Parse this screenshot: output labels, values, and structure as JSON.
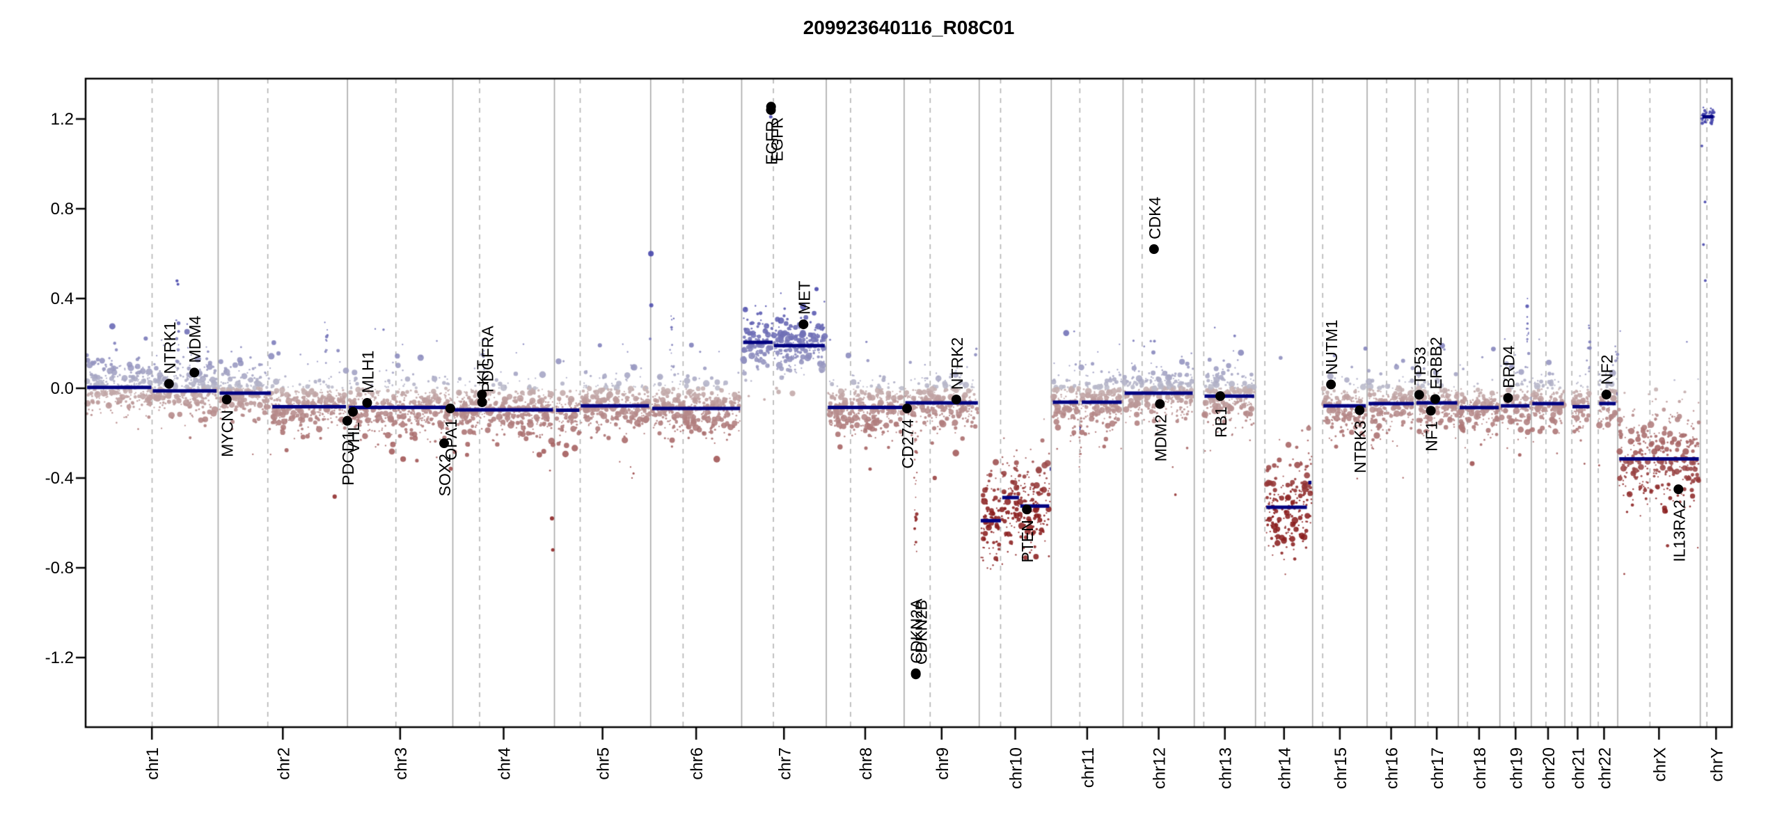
{
  "title": "209923640116_R08C01",
  "colors": {
    "background": "#ffffff",
    "segment": "#000080",
    "gene_marker": "#000000",
    "boundary_line": "#a9a9a9",
    "centromere_line": "#b3b3b3",
    "border": "#000000",
    "point_pos_near_zero": "#bcbcca",
    "point_pos_deep": "#4343ab",
    "point_neg_near_zero": "#c6b2b2",
    "point_neg_deep": "#8b2020"
  },
  "chart_data": {
    "type": "scatter",
    "title": "209923640116_R08C01",
    "xlabel": "",
    "ylabel": "",
    "ylim": [
      -1.51,
      1.38
    ],
    "y_ticks": [
      1.2,
      0.8,
      0.4,
      0.0,
      -0.4,
      -0.8,
      -1.2
    ],
    "y_tick_labels": [
      "1.2",
      "0.8",
      "0.4",
      "0.0",
      "-0.4",
      "-0.8",
      "-1.2"
    ],
    "grid": "chromosome boundaries solid, centromeres dashed",
    "legend": "none",
    "chromosomes": [
      {
        "name": "chr1",
        "length_mb": 249.25,
        "centromere_mb": 125.0,
        "probe_start_mb": 2.5,
        "probe_end_mb": 246.5,
        "segments": [
          [
            0,
            125,
            0.004
          ],
          [
            125,
            249.2,
            -0.012
          ]
        ]
      },
      {
        "name": "chr2",
        "length_mb": 243.2,
        "centromere_mb": 93.3,
        "probe_start_mb": 2.5,
        "probe_end_mb": 240.7,
        "segments": [
          [
            0,
            100.5,
            -0.022
          ],
          [
            100.5,
            243.2,
            -0.082
          ]
        ]
      },
      {
        "name": "chr3",
        "length_mb": 198.02,
        "centromere_mb": 91.0,
        "probe_start_mb": 2.5,
        "probe_end_mb": 195.5,
        "segments": [
          [
            0,
            198,
            -0.085
          ]
        ]
      },
      {
        "name": "chr4",
        "length_mb": 191.15,
        "centromere_mb": 50.4,
        "probe_start_mb": 2.5,
        "probe_end_mb": 188.6,
        "segments": [
          [
            0,
            191.1,
            -0.096
          ]
        ]
      },
      {
        "name": "chr5",
        "length_mb": 180.92,
        "centromere_mb": 48.4,
        "probe_start_mb": 2.5,
        "probe_end_mb": 178.4,
        "segments": [
          [
            0,
            48,
            -0.098
          ],
          [
            48,
            180.9,
            -0.078
          ]
        ]
      },
      {
        "name": "chr6",
        "length_mb": 171.12,
        "centromere_mb": 61.0,
        "probe_start_mb": 2.5,
        "probe_end_mb": 168.6,
        "segments": [
          [
            0,
            171.1,
            -0.09
          ]
        ]
      },
      {
        "name": "chr7",
        "length_mb": 159.14,
        "centromere_mb": 59.7,
        "probe_start_mb": 2.5,
        "probe_end_mb": 156.6,
        "segments": [
          [
            0,
            59.5,
            0.205
          ],
          [
            59.5,
            159.1,
            0.19
          ]
        ]
      },
      {
        "name": "chr8",
        "length_mb": 146.36,
        "centromere_mb": 45.6,
        "probe_start_mb": 2.5,
        "probe_end_mb": 143.9,
        "segments": [
          [
            0,
            146.3,
            -0.085
          ]
        ]
      },
      {
        "name": "chr9",
        "length_mb": 141.21,
        "centromere_mb": 49.0,
        "probe_start_mb": 2.0,
        "probe_end_mb": 139.0,
        "segments": [
          [
            0,
            141.2,
            -0.065
          ]
        ]
      },
      {
        "name": "chr10",
        "length_mb": 135.53,
        "centromere_mb": 40.2,
        "probe_start_mb": 2.5,
        "probe_end_mb": 133.0,
        "segments": [
          [
            0,
            42,
            -0.59
          ],
          [
            42,
            76,
            -0.487
          ],
          [
            76,
            133,
            -0.525
          ],
          [
            133,
            135.5,
            -0.36
          ]
        ]
      },
      {
        "name": "chr11",
        "length_mb": 135.01,
        "centromere_mb": 53.7,
        "probe_start_mb": 2.5,
        "probe_end_mb": 132.5,
        "segments": [
          [
            0,
            52,
            -0.062
          ],
          [
            52,
            56,
            -0.178
          ],
          [
            56,
            135,
            -0.062
          ]
        ]
      },
      {
        "name": "chr12",
        "length_mb": 133.85,
        "centromere_mb": 35.8,
        "probe_start_mb": 2.5,
        "probe_end_mb": 131.3,
        "segments": [
          [
            0,
            133.8,
            -0.022
          ]
        ]
      },
      {
        "name": "chr13",
        "length_mb": 115.17,
        "centromere_mb": 17.9,
        "probe_start_mb": 19.0,
        "probe_end_mb": 113.0,
        "segments": [
          [
            18,
            115.1,
            -0.035
          ]
        ]
      },
      {
        "name": "chr14",
        "length_mb": 107.35,
        "centromere_mb": 17.6,
        "probe_start_mb": 20.0,
        "probe_end_mb": 105.5,
        "segments": [
          [
            19,
            98,
            -0.53
          ],
          [
            98,
            107.3,
            -0.42
          ]
        ]
      },
      {
        "name": "chr15",
        "length_mb": 102.53,
        "centromere_mb": 19.0,
        "probe_start_mb": 20.0,
        "probe_end_mb": 100.5,
        "segments": [
          [
            19,
            102.5,
            -0.078
          ]
        ]
      },
      {
        "name": "chr16",
        "length_mb": 90.35,
        "centromere_mb": 36.6,
        "probe_start_mb": 2.5,
        "probe_end_mb": 88.0,
        "segments": [
          [
            0,
            90.3,
            -0.068
          ]
        ]
      },
      {
        "name": "chr17",
        "length_mb": 81.2,
        "centromere_mb": 24.0,
        "probe_start_mb": 2.0,
        "probe_end_mb": 79.5,
        "segments": [
          [
            0,
            81.2,
            -0.065
          ]
        ]
      },
      {
        "name": "chr18",
        "length_mb": 78.08,
        "centromere_mb": 17.2,
        "probe_start_mb": 2.0,
        "probe_end_mb": 76.3,
        "segments": [
          [
            0,
            78,
            -0.086
          ]
        ]
      },
      {
        "name": "chr19",
        "length_mb": 59.13,
        "centromere_mb": 26.5,
        "probe_start_mb": 1.5,
        "probe_end_mb": 58.0,
        "segments": [
          [
            0,
            57,
            -0.078
          ],
          [
            57,
            59.1,
            -0.045
          ]
        ]
      },
      {
        "name": "chr20",
        "length_mb": 63.03,
        "centromere_mb": 27.5,
        "probe_start_mb": 1.5,
        "probe_end_mb": 61.5,
        "segments": [
          [
            0,
            63,
            -0.068
          ]
        ]
      },
      {
        "name": "chr21",
        "length_mb": 48.13,
        "centromere_mb": 13.2,
        "probe_start_mb": 14.0,
        "probe_end_mb": 46.8,
        "segments": [
          [
            13,
            48.1,
            -0.082
          ]
        ]
      },
      {
        "name": "chr22",
        "length_mb": 51.3,
        "centromere_mb": 14.7,
        "probe_start_mb": 16.0,
        "probe_end_mb": 49.8,
        "segments": [
          [
            15,
            49,
            -0.068
          ],
          [
            49,
            51.3,
            -0.025
          ]
        ]
      },
      {
        "name": "chrX",
        "length_mb": 155.27,
        "centromere_mb": 60.6,
        "probe_start_mb": 2.5,
        "probe_end_mb": 152.8,
        "segments": [
          [
            0,
            155.2,
            -0.315
          ]
        ]
      },
      {
        "name": "chrY",
        "length_mb": 59.37,
        "centromere_mb": 12.5,
        "probe_start_mb": 2.5,
        "probe_end_mb": 26.0,
        "segments": [
          [
            2.5,
            26,
            1.21
          ]
        ],
        "density": 2.6,
        "sd": 0.022,
        "max_r": 1.9
      }
    ],
    "genes": [
      {
        "label": "NTRK1",
        "chr": "chr1",
        "mb": 156.8,
        "value": 0.02,
        "side": "above"
      },
      {
        "label": "MDM4",
        "chr": "chr1",
        "mb": 204.5,
        "value": 0.07,
        "side": "above"
      },
      {
        "label": "MYCN",
        "chr": "chr2",
        "mb": 16.1,
        "value": -0.05,
        "side": "below"
      },
      {
        "label": "PDCD1",
        "chr": "chr2",
        "mb": 242.8,
        "value": -0.145,
        "side": "below"
      },
      {
        "label": "VHL",
        "chr": "chr3",
        "mb": 10.2,
        "value": -0.105,
        "side": "below"
      },
      {
        "label": "MLH1",
        "chr": "chr3",
        "mb": 37.0,
        "value": -0.065,
        "side": "above"
      },
      {
        "label": "SOX2",
        "chr": "chr3",
        "mb": 181.7,
        "value": -0.245,
        "side": "below"
      },
      {
        "label": "OPA1",
        "chr": "chr3",
        "mb": 193.3,
        "value": -0.09,
        "side": "below"
      },
      {
        "label": "KIT",
        "chr": "chr4",
        "mb": 54.7,
        "value": -0.028,
        "side": "above"
      },
      {
        "label": "PDGFRA",
        "chr": "chr4",
        "mb": 55.1,
        "value": -0.062,
        "side": "above",
        "dx": 7
      },
      {
        "label": "EGFR",
        "chr": "chr7",
        "mb": 55.0,
        "value": 1.24,
        "side": "below"
      },
      {
        "label": "EGFR",
        "chr": "chr7",
        "mb": 55.3,
        "value": 1.255,
        "side": "below",
        "dx": 8
      },
      {
        "label": "MET",
        "chr": "chr7",
        "mb": 116.3,
        "value": 0.285,
        "side": "above"
      },
      {
        "label": "CD274",
        "chr": "chr9",
        "mb": 5.45,
        "value": -0.09,
        "side": "below"
      },
      {
        "label": "CDKN2A",
        "chr": "chr9",
        "mb": 21.97,
        "value": -1.27,
        "side": "above"
      },
      {
        "label": "CDKN2B",
        "chr": "chr9",
        "mb": 22.01,
        "value": -1.275,
        "side": "above",
        "dx": 7
      },
      {
        "label": "NTRK2",
        "chr": "chr9",
        "mb": 98.2,
        "value": -0.05,
        "side": "above"
      },
      {
        "label": "PTEN",
        "chr": "chr10",
        "mb": 89.6,
        "value": -0.54,
        "side": "below"
      },
      {
        "label": "CDK4",
        "chr": "chr12",
        "mb": 58.1,
        "value": 0.62,
        "side": "above"
      },
      {
        "label": "MDM2",
        "chr": "chr12",
        "mb": 69.2,
        "value": -0.07,
        "side": "below"
      },
      {
        "label": "RB1",
        "chr": "chr13",
        "mb": 48.9,
        "value": -0.035,
        "side": "below"
      },
      {
        "label": "NUTM1",
        "chr": "chr15",
        "mb": 34.6,
        "value": 0.017,
        "side": "above"
      },
      {
        "label": "NTRK3",
        "chr": "chr15",
        "mb": 88.4,
        "value": -0.098,
        "side": "below"
      },
      {
        "label": "TP53",
        "chr": "chr17",
        "mb": 7.57,
        "value": -0.029,
        "side": "above"
      },
      {
        "label": "NF1",
        "chr": "chr17",
        "mb": 29.5,
        "value": -0.1,
        "side": "below"
      },
      {
        "label": "ERBB2",
        "chr": "chr17",
        "mb": 37.8,
        "value": -0.048,
        "side": "above"
      },
      {
        "label": "BRD4",
        "chr": "chr19",
        "mb": 15.4,
        "value": -0.043,
        "side": "above"
      },
      {
        "label": "NF2",
        "chr": "chr22",
        "mb": 30.0,
        "value": -0.028,
        "side": "above"
      },
      {
        "label": "IL13RA2",
        "chr": "chrX",
        "mb": 114.2,
        "value": -0.45,
        "side": "below"
      }
    ],
    "streaks": [
      {
        "chr": "chr1",
        "mb": 173,
        "from": 0.07,
        "to": 0.48,
        "n": 14
      },
      {
        "chr": "chr1",
        "mb": 228,
        "from": 0.05,
        "to": 0.22,
        "n": 8
      },
      {
        "chr": "chr2",
        "mb": 203,
        "from": 0.05,
        "to": 0.3,
        "n": 10
      },
      {
        "chr": "chr4",
        "mb": 57,
        "from": 0.04,
        "to": 0.22,
        "n": 9
      },
      {
        "chr": "chr6",
        "mb": 41,
        "from": 0.07,
        "to": 0.33,
        "n": 12
      },
      {
        "chr": "chr9",
        "mb": 21.5,
        "from": -0.75,
        "to": -0.12,
        "n": 22
      },
      {
        "chr": "chr11",
        "mb": 54,
        "from": -0.34,
        "to": -0.1,
        "n": 10
      },
      {
        "chr": "chr16",
        "mb": 10,
        "from": -0.3,
        "to": -0.12,
        "n": 9
      },
      {
        "chr": "chr19",
        "mb": 53,
        "from": 0.08,
        "to": 0.42,
        "n": 14
      },
      {
        "chr": "chr21",
        "mb": 46,
        "from": 0.05,
        "to": 0.28,
        "n": 8
      },
      {
        "chr": "chr22",
        "mb": 48.5,
        "from": 0.06,
        "to": 0.2,
        "n": 7
      }
    ],
    "outliers": [
      {
        "chr": "chr6",
        "mb": 0.5,
        "value": 0.6,
        "r": 4
      },
      {
        "chr": "chr6",
        "mb": 1.2,
        "value": 0.37,
        "r": 3
      },
      {
        "chr": "chr5",
        "mb": 180,
        "value": 0.22,
        "r": 2
      },
      {
        "chr": "chr7",
        "mb": 54.8,
        "value": 1.21,
        "r": 2.5
      },
      {
        "chr": "chr4",
        "mb": 186.5,
        "value": -0.58,
        "r": 3
      },
      {
        "chr": "chr4",
        "mb": 188,
        "value": -0.72,
        "r": 2.5
      },
      {
        "chr": "chr12",
        "mb": 57,
        "value": 0.16,
        "r": 3
      },
      {
        "chr": "chr12",
        "mb": 59,
        "value": 0.21,
        "r": 2
      },
      {
        "chrY_note": "trailing points below Y gain",
        "chr": "chrY",
        "mb": 3,
        "value": 1.08,
        "r": 2
      },
      {
        "chr": "chrY",
        "mb": 6,
        "value": 0.64,
        "r": 2
      },
      {
        "chr": "chrY",
        "mb": 9,
        "value": 0.83,
        "r": 2
      },
      {
        "chr": "chrY",
        "mb": 9.5,
        "value": 0.48,
        "r": 2
      }
    ]
  },
  "layout_values": {
    "x_axis_labels": [
      "chr1",
      "chr2",
      "chr3",
      "chr4",
      "chr5",
      "chr6",
      "chr7",
      "chr8",
      "chr9",
      "chr10",
      "chr11",
      "chr12",
      "chr13",
      "chr14",
      "chr15",
      "chr16",
      "chr17",
      "chr18",
      "chr19",
      "chr20",
      "chr21",
      "chr22",
      "chrX",
      "chrY"
    ]
  }
}
